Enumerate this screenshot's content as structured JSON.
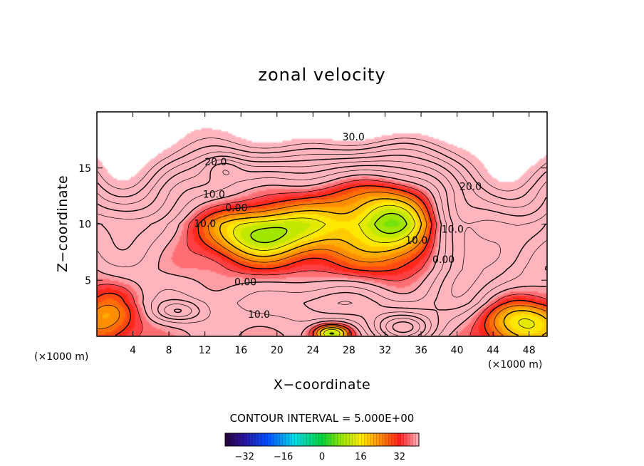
{
  "chart_data": {
    "type": "heatmap",
    "title": "zonal velocity",
    "xlabel": "X−coordinate",
    "ylabel": "Z−coordinate",
    "x_unit_label": "(×1000 m)",
    "z_unit_label": "(×1000 m)",
    "xlim": [
      0,
      50
    ],
    "ylim": [
      0,
      20
    ],
    "x_ticks": [
      4,
      8,
      12,
      16,
      20,
      24,
      28,
      32,
      36,
      40,
      44,
      48
    ],
    "y_ticks": [
      5,
      10,
      15
    ],
    "contour_interval_label": "CONTOUR INTERVAL = 5.000E+00",
    "color_range": [
      -40,
      40
    ],
    "colorbar_ticks": [
      {
        "value": -32,
        "label": "−32"
      },
      {
        "value": -16,
        "label": "−16"
      },
      {
        "value": 0,
        "label": "0"
      },
      {
        "value": 16,
        "label": "16"
      },
      {
        "value": 32,
        "label": "32"
      }
    ],
    "contour_labels": [
      {
        "text": "30.0",
        "x": 28.5,
        "z": 17.7
      },
      {
        "text": "20.0",
        "x": 13.2,
        "z": 15.5
      },
      {
        "text": "10.0",
        "x": 13.0,
        "z": 12.6
      },
      {
        "text": "0.00",
        "x": 15.5,
        "z": 11.4
      },
      {
        "text": "10.0",
        "x": 12.0,
        "z": 10.0
      },
      {
        "text": "10.0",
        "x": 35.5,
        "z": 8.5
      },
      {
        "text": "0.00",
        "x": 38.5,
        "z": 6.8
      },
      {
        "text": "10.0",
        "x": 39.5,
        "z": 9.5
      },
      {
        "text": "20.0",
        "x": 41.5,
        "z": 13.3
      },
      {
        "text": "0.00",
        "x": 16.5,
        "z": 4.8
      },
      {
        "text": "10.0",
        "x": 18.0,
        "z": 1.9
      }
    ],
    "field_centers": [
      {
        "x": 30,
        "z": 19.5,
        "amp": 20,
        "sx": 14,
        "sz": 1.8
      },
      {
        "x": 46,
        "z": 14,
        "amp": 30,
        "sx": 4,
        "sz": 5
      },
      {
        "x": 3,
        "z": 14,
        "amp": 28,
        "sx": 4,
        "sz": 5
      },
      {
        "x": 20,
        "z": 17.5,
        "amp": 8,
        "sx": 8,
        "sz": 1.5
      },
      {
        "x": 18,
        "z": 9,
        "amp": -22,
        "sx": 4,
        "sz": 1.6
      },
      {
        "x": 28,
        "z": 11,
        "amp": -16,
        "sx": 7,
        "sz": 3
      },
      {
        "x": 33,
        "z": 10,
        "amp": -14,
        "sx": 3,
        "sz": 3
      },
      {
        "x": 14,
        "z": 15,
        "amp": -12,
        "sx": 1.5,
        "sz": 0.8
      },
      {
        "x": 34,
        "z": 0.8,
        "amp": 30,
        "sx": 2.5,
        "sz": 1
      },
      {
        "x": 9,
        "z": 2.2,
        "amp": 16,
        "sx": 1.8,
        "sz": 0.6
      },
      {
        "x": 26,
        "z": 3.0,
        "amp": 10,
        "sx": 4,
        "sz": 1.2
      },
      {
        "x": 26,
        "z": 0.3,
        "amp": -32,
        "sx": 1.5,
        "sz": 0.6
      },
      {
        "x": 47,
        "z": 1.5,
        "amp": -30,
        "sx": 4,
        "sz": 1.8
      },
      {
        "x": 1,
        "z": 2,
        "amp": -22,
        "sx": 3,
        "sz": 2
      },
      {
        "x": 40,
        "z": 9,
        "amp": 12,
        "sx": 2,
        "sz": 4
      },
      {
        "x": 42,
        "z": 5,
        "amp": 10,
        "sx": 3,
        "sz": 3
      }
    ],
    "field_vertical_profile": [
      {
        "z": 0,
        "value": 0
      },
      {
        "z": 3,
        "value": 5
      },
      {
        "z": 6,
        "value": -3
      },
      {
        "z": 10,
        "value": -6
      },
      {
        "z": 13,
        "value": 5
      },
      {
        "z": 16,
        "value": 20
      },
      {
        "z": 19,
        "value": 30
      },
      {
        "z": 20,
        "value": 32
      }
    ],
    "legend": "colorbar-bottom-center",
    "grid": false
  }
}
